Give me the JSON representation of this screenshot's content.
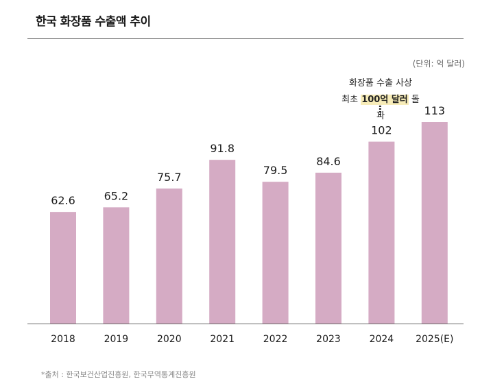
{
  "title": "한국 화장품 수출액 추이",
  "unit": "(단위: 억 달러)",
  "annotation": {
    "line1": "화장품 수출 사상",
    "line2_prefix": "최초 ",
    "line2_highlight": "100억 달러",
    "line2_suffix": " 돌파"
  },
  "source": "*출처 : 한국보건산업진흥원, 한국무역통계진흥원",
  "colors": {
    "bar": "#d5abc4",
    "axis": "#666666"
  },
  "chart_data": {
    "type": "bar",
    "title": "한국 화장품 수출액 추이",
    "xlabel": "",
    "ylabel": "",
    "categories": [
      "2018",
      "2019",
      "2020",
      "2021",
      "2022",
      "2023",
      "2024",
      "2025(E)"
    ],
    "values": [
      62.6,
      65.2,
      75.7,
      91.8,
      79.5,
      84.6,
      102,
      113
    ],
    "value_labels": [
      "62.6",
      "65.2",
      "75.7",
      "91.8",
      "79.5",
      "84.6",
      "102",
      "113"
    ],
    "ylim": [
      0,
      113
    ],
    "grid": false
  }
}
